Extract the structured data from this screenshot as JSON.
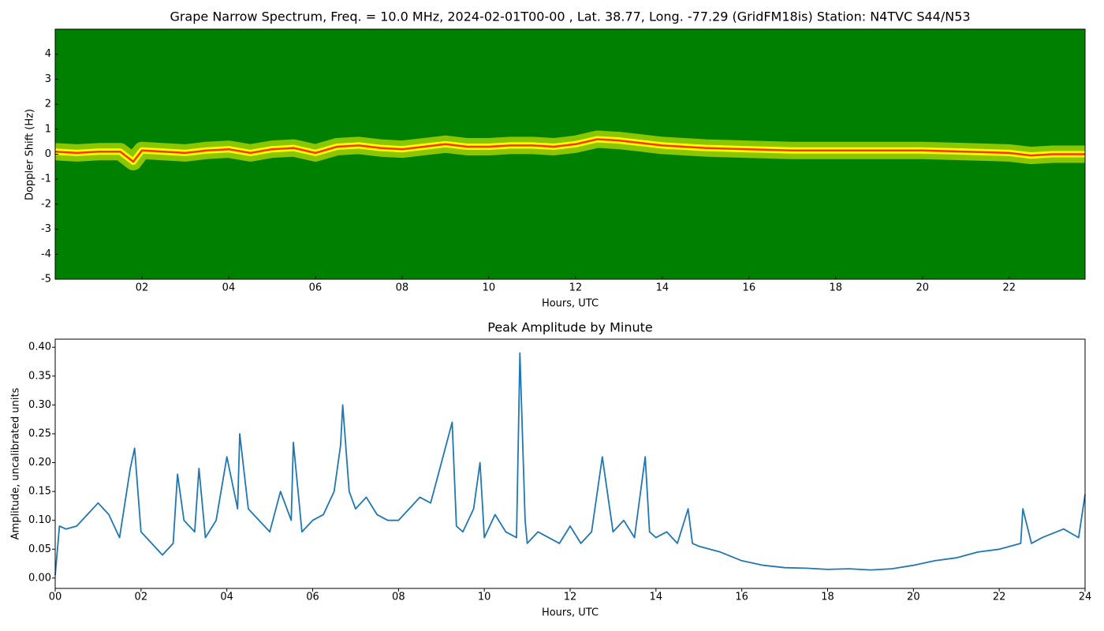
{
  "chart_data": [
    {
      "type": "spectrogram",
      "title": "Grape Narrow Spectrum, Freq. = 10.0 MHz, 2024-02-01T00-00 , Lat.  38.77, Long. -77.29 (GridFM18is) Station: N4TVC S44/N53",
      "xlabel": "Hours, UTC",
      "ylabel": "Doppler Shift (Hz)",
      "xlim": [
        0,
        23.75
      ],
      "ylim": [
        -5,
        5
      ],
      "xticks": [
        {
          "value": 2,
          "label": "02"
        },
        {
          "value": 4,
          "label": "04"
        },
        {
          "value": 6,
          "label": "06"
        },
        {
          "value": 8,
          "label": "08"
        },
        {
          "value": 10,
          "label": "10"
        },
        {
          "value": 12,
          "label": "12"
        },
        {
          "value": 14,
          "label": "14"
        },
        {
          "value": 16,
          "label": "16"
        },
        {
          "value": 18,
          "label": "18"
        },
        {
          "value": 20,
          "label": "20"
        },
        {
          "value": 22,
          "label": "22"
        }
      ],
      "yticks": [
        -5,
        -4,
        -3,
        -2,
        -1,
        0,
        1,
        2,
        3,
        4
      ],
      "colors": [
        "#008000",
        "#ffff00",
        "#ff3300"
      ],
      "x": [
        0,
        0.5,
        1,
        1.5,
        1.8,
        2,
        2.5,
        3,
        3.5,
        4,
        4.5,
        5,
        5.5,
        6,
        6.5,
        7,
        7.5,
        8,
        8.5,
        9,
        9.5,
        10,
        10.5,
        11,
        11.5,
        12,
        12.5,
        13,
        13.5,
        14,
        14.5,
        15,
        16,
        17,
        18,
        19,
        20,
        21,
        22,
        22.5,
        23,
        23.75
      ],
      "values": [
        0.1,
        0.05,
        0.1,
        0.1,
        -0.3,
        0.15,
        0.1,
        0.05,
        0.15,
        0.2,
        0.05,
        0.2,
        0.25,
        0.05,
        0.3,
        0.35,
        0.25,
        0.2,
        0.3,
        0.4,
        0.3,
        0.3,
        0.35,
        0.35,
        0.3,
        0.4,
        0.6,
        0.55,
        0.45,
        0.35,
        0.3,
        0.25,
        0.2,
        0.15,
        0.15,
        0.15,
        0.15,
        0.1,
        0.05,
        -0.05,
        0.0,
        0.0
      ]
    },
    {
      "type": "line",
      "title": "Peak Amplitude by Minute",
      "xlabel": "Hours, UTC",
      "ylabel": "Amplitude, uncalibrated units",
      "xlim": [
        0,
        24
      ],
      "ylim": [
        -0.018,
        0.414
      ],
      "xticks": [
        {
          "value": 0,
          "label": "00"
        },
        {
          "value": 2,
          "label": "02"
        },
        {
          "value": 4,
          "label": "04"
        },
        {
          "value": 6,
          "label": "06"
        },
        {
          "value": 8,
          "label": "08"
        },
        {
          "value": 10,
          "label": "10"
        },
        {
          "value": 12,
          "label": "12"
        },
        {
          "value": 14,
          "label": "14"
        },
        {
          "value": 16,
          "label": "16"
        },
        {
          "value": 18,
          "label": "18"
        },
        {
          "value": 20,
          "label": "20"
        },
        {
          "value": 22,
          "label": "22"
        },
        {
          "value": 24,
          "label": "24"
        }
      ],
      "yticks": [
        {
          "value": 0,
          "label": "0.00"
        },
        0.05,
        {
          "value": 0.1,
          "label": "0.10"
        },
        0.15,
        {
          "value": 0.2,
          "label": "0.20"
        },
        0.25,
        {
          "value": 0.3,
          "label": "0.30"
        },
        0.35,
        {
          "value": 0.4,
          "label": "0.40"
        }
      ],
      "color": "#1f77b4",
      "x": [
        0,
        0.1,
        0.25,
        0.5,
        0.75,
        1,
        1.25,
        1.5,
        1.75,
        1.85,
        2,
        2.25,
        2.5,
        2.75,
        2.85,
        3,
        3.25,
        3.35,
        3.5,
        3.75,
        4,
        4.25,
        4.3,
        4.5,
        4.75,
        5,
        5.25,
        5.5,
        5.55,
        5.75,
        6,
        6.25,
        6.5,
        6.65,
        6.7,
        6.85,
        7,
        7.25,
        7.5,
        7.75,
        8,
        8.25,
        8.5,
        8.75,
        9,
        9.25,
        9.35,
        9.5,
        9.75,
        9.9,
        10,
        10.25,
        10.5,
        10.75,
        10.83,
        10.95,
        11,
        11.25,
        11.5,
        11.75,
        12,
        12.25,
        12.5,
        12.75,
        13,
        13.25,
        13.5,
        13.75,
        13.85,
        14,
        14.25,
        14.5,
        14.75,
        14.85,
        15,
        15.5,
        16,
        16.5,
        17,
        17.5,
        18,
        18.5,
        19,
        19.5,
        20,
        20.5,
        21,
        21.5,
        22,
        22.5,
        22.55,
        22.75,
        23,
        23.5,
        23.85,
        24
      ],
      "values": [
        0.005,
        0.09,
        0.085,
        0.09,
        0.11,
        0.13,
        0.11,
        0.07,
        0.19,
        0.225,
        0.08,
        0.06,
        0.04,
        0.06,
        0.18,
        0.1,
        0.08,
        0.19,
        0.07,
        0.1,
        0.21,
        0.12,
        0.25,
        0.12,
        0.1,
        0.08,
        0.15,
        0.1,
        0.235,
        0.08,
        0.1,
        0.11,
        0.15,
        0.23,
        0.3,
        0.15,
        0.12,
        0.14,
        0.11,
        0.1,
        0.1,
        0.12,
        0.14,
        0.13,
        0.2,
        0.27,
        0.09,
        0.08,
        0.12,
        0.2,
        0.07,
        0.11,
        0.08,
        0.07,
        0.39,
        0.1,
        0.06,
        0.08,
        0.07,
        0.06,
        0.09,
        0.06,
        0.08,
        0.21,
        0.08,
        0.1,
        0.07,
        0.21,
        0.08,
        0.07,
        0.08,
        0.06,
        0.12,
        0.06,
        0.055,
        0.045,
        0.03,
        0.022,
        0.018,
        0.017,
        0.015,
        0.016,
        0.014,
        0.016,
        0.022,
        0.03,
        0.035,
        0.045,
        0.05,
        0.06,
        0.12,
        0.06,
        0.07,
        0.085,
        0.07,
        0.145
      ]
    }
  ]
}
